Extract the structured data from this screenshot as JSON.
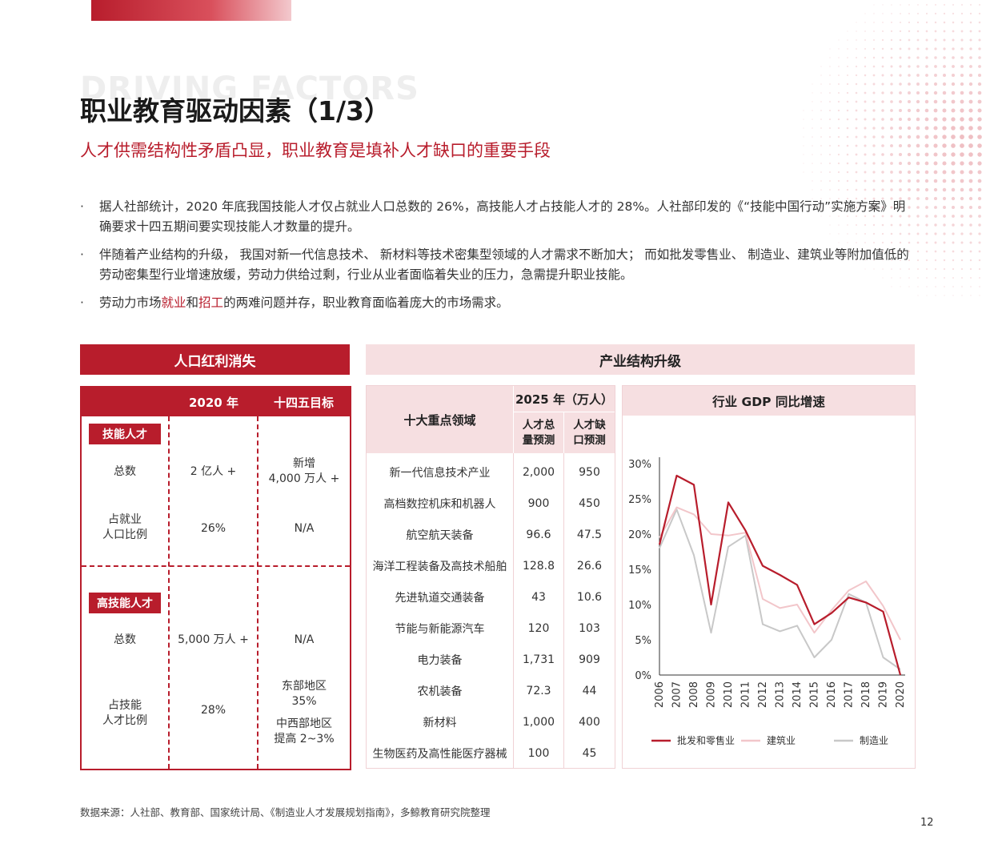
{
  "header": {
    "bg_title": "DRIVING FACTORS",
    "title": "职业教育驱动因素（1/3）",
    "subtitle": "人才供需结构性矛盾凸显，职业教育是填补人才缺口的重要手段"
  },
  "bullets": [
    {
      "text": "据人社部统计，2020 年底我国技能人才仅占就业人口总数的 26%，高技能人才占技能人才的 28%。人社部印发的《“技能中国行动”实施方案》明确要求十四五期间要实现技能人才数量的提升。"
    },
    {
      "text": "伴随着产业结构的升级， 我国对新一代信息技术、 新材料等技术密集型领域的人才需求不断加大； 而如批发零售业、 制造业、建筑业等附加值低的劳动密集型行业增速放缓，劳动力供给过剩，行业从业者面临着失业的压力，急需提升职业技能。"
    },
    {
      "pre": "劳动力市场",
      "hl1": "就业",
      "mid": "和",
      "hl2": "招工",
      "post": "的两难问题并存，职业教育面临着庞大的市场需求。"
    }
  ],
  "left_panel": {
    "title": "人口红利消失",
    "col_2020": "2020 年",
    "col_target": "十四五目标",
    "group1_tag": "技能人才",
    "g1_total_label": "总数",
    "g1_total_2020": "2 亿人 +",
    "g1_total_target_1": "新增",
    "g1_total_target_2": "4,000 万人 +",
    "g1_ratio_label_1": "占就业",
    "g1_ratio_label_2": "人口比例",
    "g1_ratio_2020": "26%",
    "g1_ratio_target": "N/A",
    "group2_tag": "高技能人才",
    "g2_total_label": "总数",
    "g2_total_2020": "5,000 万人 +",
    "g2_total_target": "N/A",
    "g2_ratio_label_1": "占技能",
    "g2_ratio_label_2": "人才比例",
    "g2_ratio_2020": "28%",
    "g2_ratio_target_1": "东部地区",
    "g2_ratio_target_2": "35%",
    "g2_ratio_target_3": "中西部地区",
    "g2_ratio_target_4": "提高 2~3%"
  },
  "right_panel": {
    "title": "产业结构升级",
    "table": {
      "col_field": "十大重点领域",
      "col_group": "2025 年（万人）",
      "col_total_1": "人才总",
      "col_total_2": "量预测",
      "col_gap_1": "人才缺",
      "col_gap_2": "口预测",
      "rows": [
        {
          "name": "新一代信息技术产业",
          "total": "2,000",
          "gap": "950"
        },
        {
          "name": "高档数控机床和机器人",
          "total": "900",
          "gap": "450"
        },
        {
          "name": "航空航天装备",
          "total": "96.6",
          "gap": "47.5"
        },
        {
          "name": "海洋工程装备及高技术船舶",
          "total": "128.8",
          "gap": "26.6"
        },
        {
          "name": "先进轨道交通装备",
          "total": "43",
          "gap": "10.6"
        },
        {
          "name": "节能与新能源汽车",
          "total": "120",
          "gap": "103"
        },
        {
          "name": "电力装备",
          "total": "1,731",
          "gap": "909"
        },
        {
          "name": "农机装备",
          "total": "72.3",
          "gap": "44"
        },
        {
          "name": "新材料",
          "total": "1,000",
          "gap": "400"
        },
        {
          "name": "生物医药及高性能医疗器械",
          "total": "100",
          "gap": "45"
        }
      ]
    }
  },
  "chart_data": {
    "type": "line",
    "title": "行业 GDP 同比增速",
    "x": [
      "2006",
      "2007",
      "2008",
      "2009",
      "2010",
      "2011",
      "2012",
      "2013",
      "2014",
      "2015",
      "2016",
      "2017",
      "2018",
      "2019",
      "2020"
    ],
    "y_ticks": [
      "0%",
      "5%",
      "10%",
      "15%",
      "20%",
      "25%",
      "30%"
    ],
    "ylim": [
      0,
      30
    ],
    "grid": false,
    "legend": "bottom",
    "series": [
      {
        "name": "批发和零售业",
        "color": "#b81d2c",
        "values": [
          18.5,
          28.3,
          27,
          10,
          24.5,
          20.5,
          15.5,
          14.2,
          12.8,
          7.2,
          8.8,
          11,
          10.3,
          9,
          0
        ]
      },
      {
        "name": "建筑业",
        "color": "#f2c6ca",
        "values": [
          19.5,
          23.8,
          22.8,
          20,
          19.8,
          20.2,
          10.8,
          9.5,
          10,
          6,
          9.2,
          12,
          13.3,
          9.8,
          5
        ]
      },
      {
        "name": "制造业",
        "color": "#c8c8c8",
        "values": [
          18,
          23.5,
          17,
          6,
          18.2,
          19.8,
          7.2,
          6.2,
          7,
          2.5,
          5,
          11.5,
          10.3,
          2.5,
          0.8
        ]
      }
    ]
  },
  "footer": {
    "source": "数据来源：人社部、教育部、国家统计局、《制造业人才发展规划指南》，多鲸教育研究院整理",
    "page": "12"
  }
}
